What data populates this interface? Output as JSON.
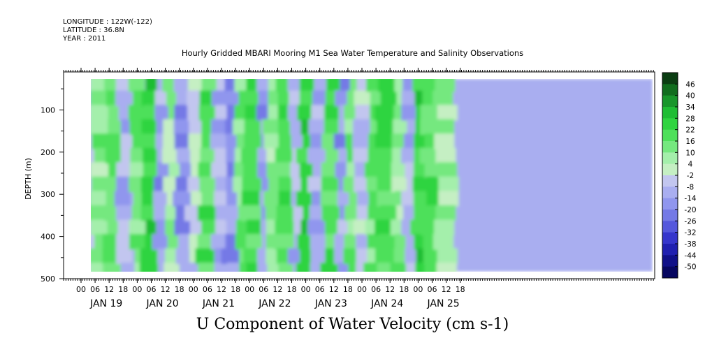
{
  "header": {
    "longitude": "LONGITUDE : 122W(-122)",
    "latitude": "LATITUDE : 36.8N",
    "year": "YEAR : 2011"
  },
  "chart_data": {
    "type": "heatmap",
    "title": "Hourly Gridded MBARI Mooring M1 Sea Water Temperature and Salinity Observations",
    "bottom_title": "U Component of Water Velocity (cm s-1)",
    "ylabel": "DEPTH (m)",
    "ylim": [
      500,
      10
    ],
    "y_ticks": [
      100,
      200,
      300,
      400,
      500
    ],
    "x_hour_ticks": [
      "00",
      "06",
      "12",
      "18",
      "00",
      "06",
      "12",
      "18",
      "00",
      "06",
      "12",
      "18",
      "00",
      "06",
      "12",
      "18",
      "00",
      "06",
      "12",
      "18",
      "00",
      "06",
      "12",
      "18",
      "00",
      "06",
      "12",
      "18"
    ],
    "x_day_labels": [
      "JAN 19",
      "JAN 20",
      "JAN 21",
      "JAN 22",
      "JAN 23",
      "JAN 24",
      "JAN 25"
    ],
    "colorbar": {
      "labels": [
        "46",
        "40",
        "34",
        "28",
        "22",
        "16",
        "10",
        "4",
        "-2",
        "-8",
        "-14",
        "-20",
        "-26",
        "-32",
        "-38",
        "-44",
        "-50"
      ],
      "colors_high_to_low": [
        "#0b3d12",
        "#116d1e",
        "#18962a",
        "#1fbd33",
        "#2fd43f",
        "#4ee05a",
        "#75e87f",
        "#a4efab",
        "#c5efc3",
        "#c2c6ef",
        "#a9aef0",
        "#9096ee",
        "#7479e6",
        "#5558dc",
        "#3636cc",
        "#2020b0",
        "#101088",
        "#060660"
      ]
    },
    "field_description_vertical_bands": [
      {
        "day": 19.2,
        "value": -8
      },
      {
        "day": 19.4,
        "value": 10
      },
      {
        "day": 19.6,
        "value": 16
      },
      {
        "day": 19.8,
        "value": -10
      },
      {
        "day": 20.05,
        "value": 12
      },
      {
        "day": 20.3,
        "value": 22
      },
      {
        "day": 20.5,
        "value": -14
      },
      {
        "day": 20.7,
        "value": 8
      },
      {
        "day": 20.9,
        "value": -16
      },
      {
        "day": 21.1,
        "value": -4
      },
      {
        "day": 21.3,
        "value": 18
      },
      {
        "day": 21.5,
        "value": -10
      },
      {
        "day": 21.7,
        "value": -18
      },
      {
        "day": 21.9,
        "value": 14
      },
      {
        "day": 22.1,
        "value": 22
      },
      {
        "day": 22.3,
        "value": -16
      },
      {
        "day": 22.5,
        "value": 10
      },
      {
        "day": 22.7,
        "value": 20
      },
      {
        "day": 22.9,
        "value": -8
      },
      {
        "day": 23.1,
        "value": 24
      },
      {
        "day": 23.3,
        "value": -12
      },
      {
        "day": 23.5,
        "value": 18
      },
      {
        "day": 23.7,
        "value": -14
      },
      {
        "day": 23.9,
        "value": 12
      },
      {
        "day": 24.1,
        "value": -6
      },
      {
        "day": 24.3,
        "value": 16
      },
      {
        "day": 24.5,
        "value": 20
      },
      {
        "day": 24.7,
        "value": 10
      },
      {
        "day": 24.9,
        "value": -10
      },
      {
        "day": 25.1,
        "value": 24
      },
      {
        "day": 25.3,
        "value": 18
      },
      {
        "day": 25.5,
        "value": 8
      }
    ]
  }
}
